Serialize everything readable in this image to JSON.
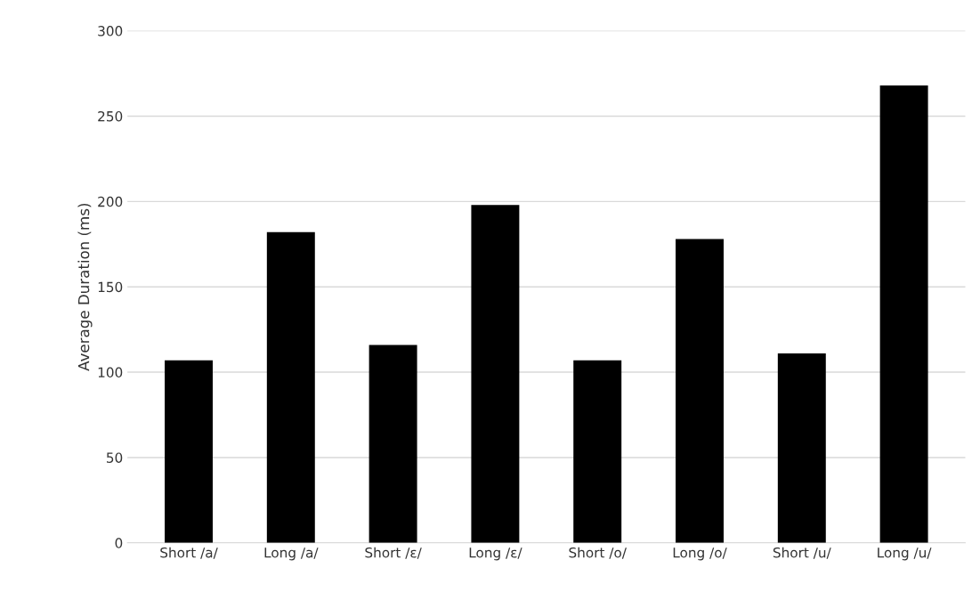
{
  "chart_data": {
    "type": "bar",
    "ylabel": "Average Duration (ms)",
    "categories": [
      "Short /a/",
      "Long /a/",
      "Short /ɛ/",
      "Long /ɛ/",
      "Short /o/",
      "Long /o/",
      "Short /u/",
      "Long /u/"
    ],
    "values": [
      107,
      182,
      116,
      198,
      107,
      178,
      111,
      268
    ],
    "color": "#000000",
    "ylim": [
      0,
      300
    ],
    "yticks": [
      0,
      50,
      100,
      150,
      200,
      250,
      300
    ],
    "grid": "y"
  }
}
